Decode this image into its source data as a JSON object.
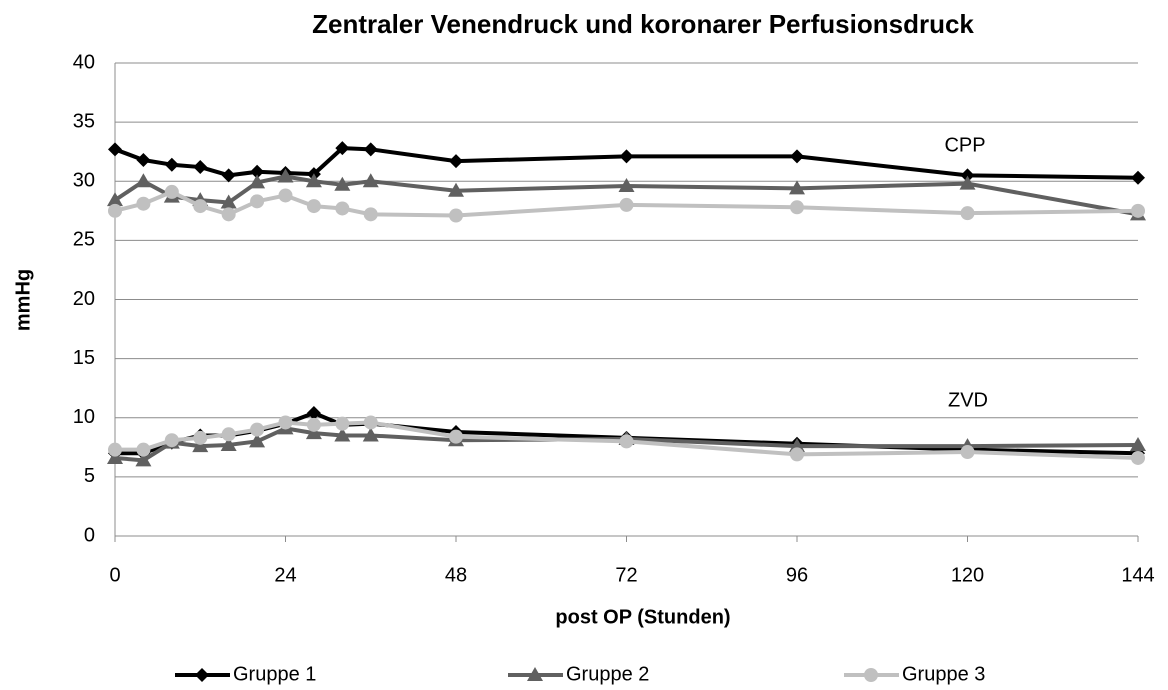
{
  "chart_data": {
    "type": "line",
    "title": "Zentraler Venendruck und koronarer Perfusionsdruck",
    "xlabel": "post OP (Stunden)",
    "ylabel": "mmHg",
    "annotations": [
      "CPP",
      "ZVD"
    ],
    "x": [
      0,
      4,
      8,
      12,
      16,
      20,
      24,
      28,
      32,
      36,
      48,
      72,
      96,
      120,
      144
    ],
    "xlim": [
      0,
      144
    ],
    "xticks": [
      0,
      24,
      48,
      72,
      96,
      120,
      144
    ],
    "ylim": [
      0,
      40
    ],
    "yticks": [
      0,
      5,
      10,
      15,
      20,
      25,
      30,
      35,
      40
    ],
    "grid": true,
    "legend": "bottom",
    "series": [
      {
        "name": "Gruppe 1",
        "color": "#000000",
        "marker": "diamond",
        "values": [
          32.7,
          31.8,
          31.4,
          31.2,
          30.5,
          30.8,
          30.7,
          30.6,
          32.8,
          32.7,
          31.7,
          32.1,
          32.1,
          30.5,
          30.3
        ],
        "zvd_values": [
          7.0,
          7.0,
          7.9,
          8.5,
          8.5,
          8.9,
          9.5,
          10.4,
          9.4,
          9.5,
          8.8,
          8.3,
          7.8,
          7.3,
          7.0
        ]
      },
      {
        "name": "Gruppe 2",
        "color": "#606060",
        "marker": "triangle",
        "values": [
          28.4,
          30.0,
          28.7,
          28.4,
          28.2,
          29.9,
          30.4,
          30.0,
          29.7,
          30.0,
          29.2,
          29.6,
          29.4,
          29.8,
          27.2
        ],
        "zvd_values": [
          6.6,
          6.4,
          7.9,
          7.6,
          7.7,
          8.0,
          9.1,
          8.7,
          8.5,
          8.5,
          8.1,
          8.2,
          7.6,
          7.6,
          7.7
        ]
      },
      {
        "name": "Gruppe 3",
        "color": "#c0c0c0",
        "marker": "circle",
        "values": [
          27.5,
          28.1,
          29.1,
          27.9,
          27.2,
          28.3,
          28.8,
          27.9,
          27.7,
          27.2,
          27.1,
          28.0,
          27.8,
          27.3,
          27.5
        ],
        "zvd_values": [
          7.3,
          7.3,
          8.1,
          8.3,
          8.6,
          9.0,
          9.6,
          9.4,
          9.5,
          9.6,
          8.4,
          8.0,
          6.9,
          7.1,
          6.6
        ]
      }
    ]
  }
}
